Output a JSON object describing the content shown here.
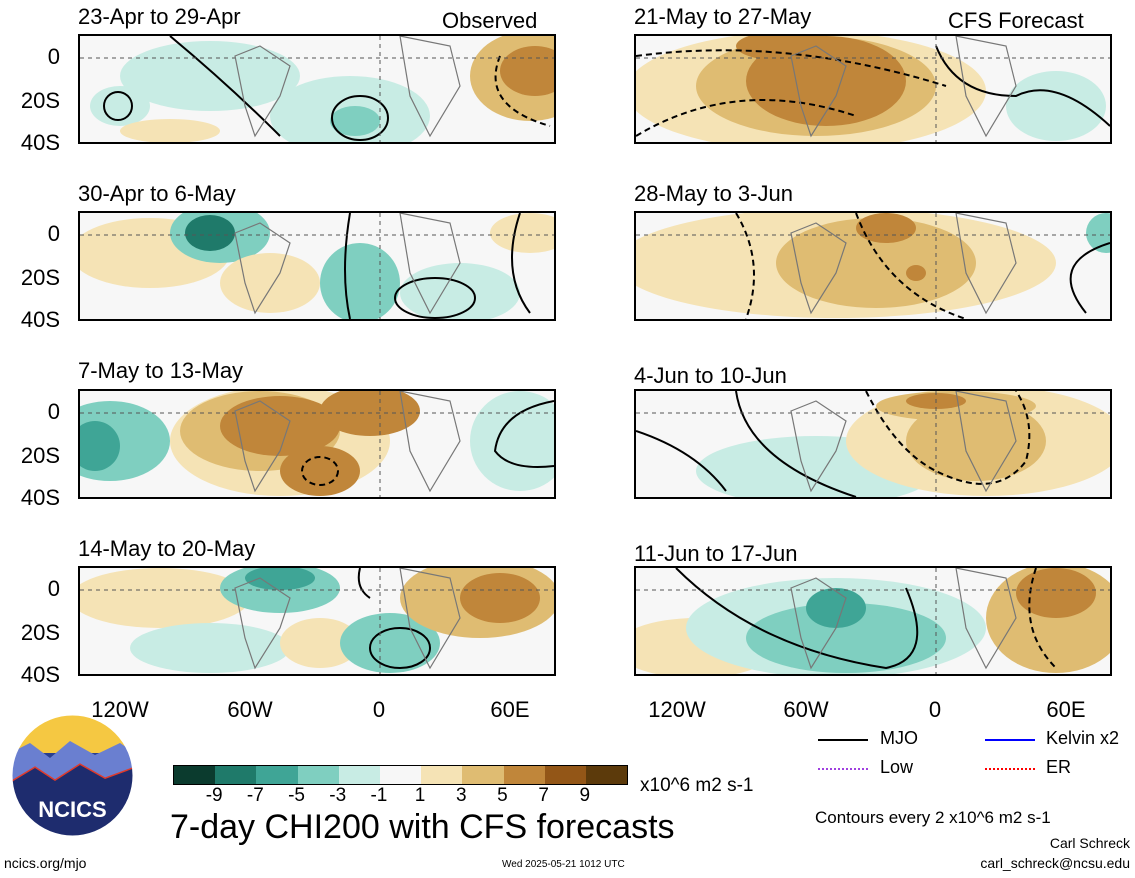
{
  "figure": {
    "title": "7-day CHI200 with CFS forecasts",
    "observed_label": "Observed",
    "forecast_label": "CFS Forecast",
    "units": "x10^6 m2 s-1",
    "contour_note": "Contours every 2 x10^6 m2 s-1",
    "author": "Carl Schreck",
    "email": "carl_schreck@ncsu.edu",
    "website": "ncics.org/mjo",
    "timestamp": "Wed 2025-05-21 1012 UTC",
    "logo_text": "NCICS"
  },
  "axes": {
    "y_ticks": [
      "0",
      "20S",
      "40S"
    ],
    "x_ticks": [
      "120W",
      "60W",
      "0",
      "60E"
    ]
  },
  "panels": {
    "observed": [
      {
        "period": "23-Apr to 29-Apr"
      },
      {
        "period": "30-Apr to 6-May"
      },
      {
        "period": "7-May to 13-May"
      },
      {
        "period": "14-May to 20-May"
      }
    ],
    "forecast": [
      {
        "period": "21-May to 27-May"
      },
      {
        "period": "28-May to 3-Jun"
      },
      {
        "period": "4-Jun to 10-Jun"
      },
      {
        "period": "11-Jun to 17-Jun"
      }
    ]
  },
  "colorbar": {
    "tick_labels": [
      "-9",
      "-7",
      "-5",
      "-3",
      "-1",
      "1",
      "3",
      "5",
      "7",
      "9"
    ],
    "colors": [
      "#0b3b2e",
      "#1f7a6a",
      "#3fa596",
      "#7fcfc0",
      "#c8ece4",
      "#f7f7f7",
      "#f5e3b5",
      "#dfbc72",
      "#c0863a",
      "#935617",
      "#5c3a0b"
    ]
  },
  "legend": [
    {
      "label": "MJO",
      "color": "#000000"
    },
    {
      "label": "Kelvin x2",
      "color": "#0000ff"
    },
    {
      "label": "Low",
      "color": "#a040e0"
    },
    {
      "label": "ER",
      "color": "#ff0000"
    }
  ]
}
